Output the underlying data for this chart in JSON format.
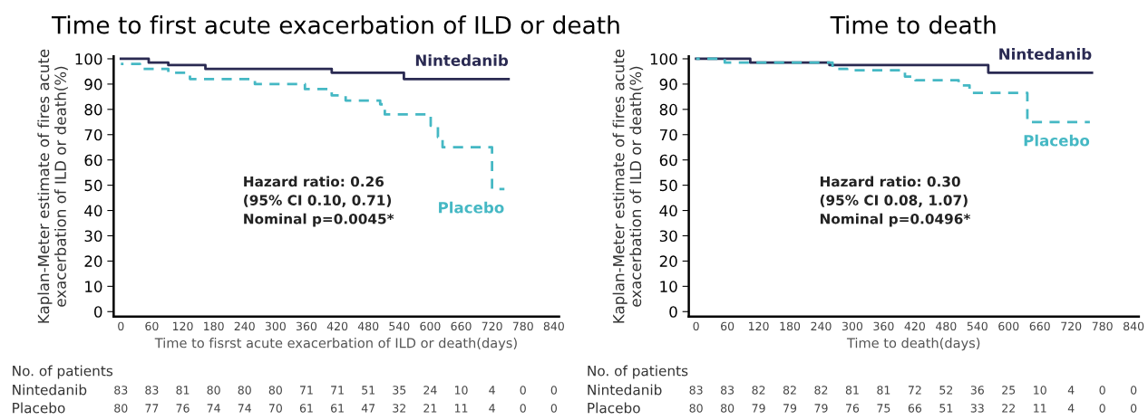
{
  "chart_data": [
    {
      "type": "step",
      "title": "Time to first acute exacerbation of ILD or death",
      "xlabel": "Time to fisrst acute exacerbation of ILD or death(days)",
      "ylabel": "Kaplan-Meter estimate of fires acute\nexacerbation of ILD or death(%)",
      "xlim": [
        -14,
        850
      ],
      "xticks": [
        0,
        60,
        120,
        180,
        240,
        300,
        360,
        420,
        480,
        540,
        600,
        660,
        720,
        780,
        840
      ],
      "ylim": [
        -2,
        101
      ],
      "yticks": [
        0,
        10,
        20,
        30,
        40,
        50,
        60,
        70,
        80,
        90,
        100
      ],
      "legend": false,
      "grid": false,
      "series": [
        {
          "name": "Nintedanib",
          "color": "#2a2a52",
          "line_style": "solid",
          "x": [
            0,
            54,
            92,
            164,
            409,
            549,
            752
          ],
          "values": [
            100,
            98.5,
            97.5,
            96,
            94.5,
            92,
            92
          ]
        },
        {
          "name": "Placebo",
          "color": "#45b8c4",
          "line_style": "dashed",
          "x": [
            0,
            37,
            92,
            134,
            260,
            357,
            409,
            436,
            503,
            512,
            601,
            615,
            624,
            720,
            744
          ],
          "values": [
            98,
            96,
            94.5,
            92,
            90,
            88,
            85.5,
            83.5,
            82,
            78,
            73.5,
            69,
            65,
            48.5,
            48.5
          ]
        }
      ],
      "annotations": [
        "Hazard ratio: 0.26\n(95% CI 0.10, 0.71)\nNominal p=0.0045*",
        "No. of patients",
        "83 83 81 80 80 80 71 71 51 35 24 10 4 0 0",
        "80 77 76 74 74 70 61 61 47 32 21 11 4 0 0"
      ]
    },
    {
      "type": "step",
      "title": "Time to death",
      "xlabel": "Time to death(days)",
      "ylabel": "Kaplan-Meter estimate of fires acute\nexacerbation of ILD or death(%)",
      "xlim": [
        -14,
        850
      ],
      "xticks": [
        0,
        60,
        120,
        180,
        240,
        300,
        360,
        420,
        480,
        540,
        600,
        660,
        720,
        780,
        840
      ],
      "ylim": [
        -2,
        101
      ],
      "yticks": [
        0,
        10,
        20,
        30,
        40,
        50,
        60,
        70,
        80,
        90,
        100
      ],
      "legend": false,
      "grid": false,
      "series": [
        {
          "name": "Nintedanib",
          "color": "#2a2a52",
          "line_style": "solid",
          "x": [
            0,
            104,
            256,
            561,
            760
          ],
          "values": [
            100,
            98.5,
            97.5,
            94.5,
            94.5
          ]
        },
        {
          "name": "Placebo",
          "color": "#45b8c4",
          "line_style": "dashed",
          "x": [
            0,
            55,
            262,
            290,
            401,
            421,
            504,
            525,
            636,
            756
          ],
          "values": [
            100,
            98.5,
            96,
            95.5,
            93,
            91.5,
            89.5,
            86.5,
            75,
            75
          ]
        }
      ],
      "annotations": [
        "Hazard ratio: 0.30\n(95% CI 0.08, 1.07)\nNominal p=0.0496*",
        "No. of patients",
        "83 83 82 82 82 81 81 72 52 36 25 10 4 0 0",
        "80 80 79 79 79 76 75 66 51 33 22 11 4 0 0"
      ]
    }
  ]
}
